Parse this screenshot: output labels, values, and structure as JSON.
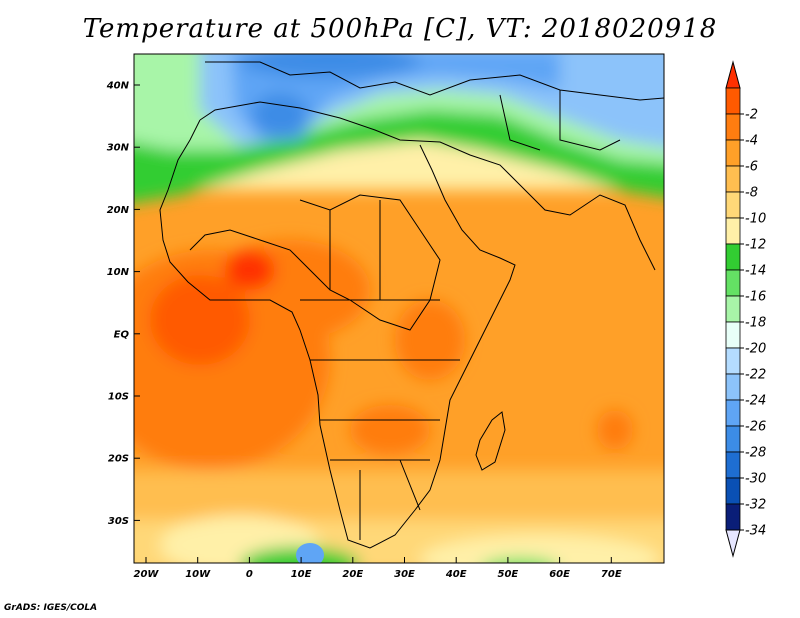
{
  "title": "Temperature at 500hPa [C], VT: 2018020918",
  "credit": "GrADS: IGES/COLA",
  "y_ticks": [
    "40N",
    "30N",
    "20N",
    "10N",
    "EQ",
    "10S",
    "20S",
    "30S"
  ],
  "x_ticks": [
    "20W",
    "10W",
    "0",
    "10E",
    "20E",
    "30E",
    "40E",
    "50E",
    "60E",
    "70E"
  ],
  "colorbar": {
    "labels": [
      "-2",
      "-4",
      "-6",
      "-8",
      "-10",
      "-12",
      "-14",
      "-16",
      "-18",
      "-20",
      "-22",
      "-24",
      "-26",
      "-28",
      "-30",
      "-32",
      "-34"
    ],
    "colors": [
      "#ff5a00",
      "#ff7d10",
      "#ffa028",
      "#ffbe50",
      "#ffd878",
      "#fff0a8",
      "#32cd32",
      "#64e164",
      "#a8f5a8",
      "#e8fff8",
      "#b4dcff",
      "#8cc3fa",
      "#5fa5f5",
      "#3c8ce6",
      "#1e6ed2",
      "#0a50b4",
      "#0a1e78"
    ],
    "top_arrow_color": "#ff3000",
    "bottom_arrow_color": "#e6e6ff"
  }
}
